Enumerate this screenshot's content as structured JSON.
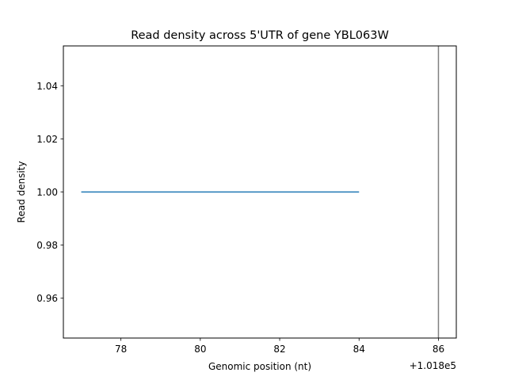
{
  "chart_data": {
    "type": "line",
    "title": "Read density across 5'UTR of gene YBL063W",
    "xlabel": "Genomic position (nt)",
    "ylabel": "Read density",
    "x_offset_label": "+1.018e5",
    "xlim": [
      76.55,
      86.45
    ],
    "ylim": [
      0.945,
      1.055
    ],
    "xticks": [
      78,
      80,
      82,
      84,
      86
    ],
    "xtick_labels": [
      "78",
      "80",
      "82",
      "84",
      "86"
    ],
    "yticks": [
      0.96,
      0.98,
      1.0,
      1.02,
      1.04
    ],
    "ytick_labels": [
      "0.96",
      "0.98",
      "1.00",
      "1.02",
      "1.04"
    ],
    "series": [
      {
        "x": [
          77,
          78,
          79,
          80,
          81,
          82,
          83,
          84
        ],
        "y": [
          1,
          1,
          1,
          1,
          1,
          1,
          1,
          1
        ],
        "color": "#1f77b4"
      }
    ],
    "vlines": [
      {
        "x": 86,
        "color": "#808080"
      }
    ],
    "grid": false,
    "legend": "none"
  }
}
